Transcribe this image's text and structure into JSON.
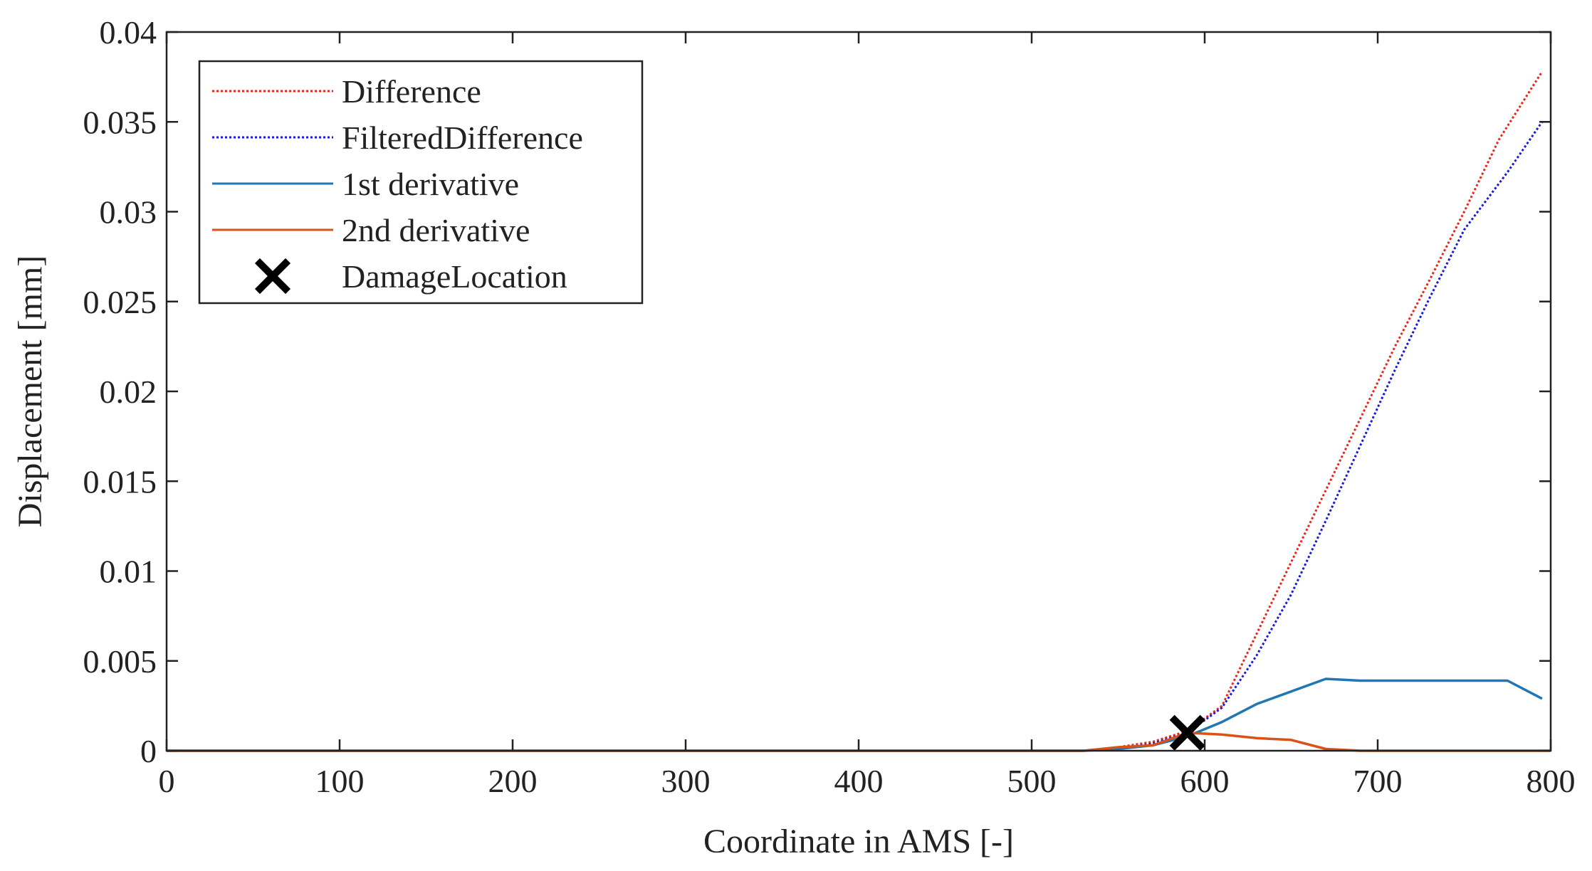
{
  "chart_data": {
    "type": "line",
    "title": "",
    "xlabel": "Coordinate in AMS  [-]",
    "ylabel": "Displacement  [mm]",
    "xlim": [
      0,
      800
    ],
    "ylim": [
      0,
      0.04
    ],
    "xticks": [
      0,
      100,
      200,
      300,
      400,
      500,
      600,
      700,
      800
    ],
    "yticks": [
      0,
      0.005,
      0.01,
      0.015,
      0.02,
      0.025,
      0.03,
      0.035,
      0.04
    ],
    "xtick_labels": [
      "0",
      "100",
      "200",
      "300",
      "400",
      "500",
      "600",
      "700",
      "800"
    ],
    "ytick_labels": [
      "0",
      "0.005",
      "0.01",
      "0.015",
      "0.02",
      "0.025",
      "0.03",
      "0.035",
      "0.04"
    ],
    "grid": false,
    "legend_position": "top-left",
    "series": [
      {
        "name": "Difference",
        "color": "#e8261c",
        "style": "dotted",
        "points": [
          [
            0,
            0
          ],
          [
            100,
            0
          ],
          [
            200,
            0
          ],
          [
            300,
            0
          ],
          [
            400,
            0
          ],
          [
            500,
            0
          ],
          [
            530,
            0
          ],
          [
            550,
            0.0002
          ],
          [
            570,
            0.0005
          ],
          [
            590,
            0.0011
          ],
          [
            610,
            0.0025
          ],
          [
            630,
            0.0065
          ],
          [
            650,
            0.0105
          ],
          [
            670,
            0.0145
          ],
          [
            690,
            0.0185
          ],
          [
            710,
            0.0225
          ],
          [
            730,
            0.0262
          ],
          [
            750,
            0.03
          ],
          [
            770,
            0.034
          ],
          [
            795,
            0.0378
          ]
        ]
      },
      {
        "name": "FilteredDifference",
        "color": "#1a1ad6",
        "style": "dotted",
        "points": [
          [
            0,
            0
          ],
          [
            100,
            0
          ],
          [
            200,
            0
          ],
          [
            300,
            0
          ],
          [
            400,
            0
          ],
          [
            500,
            0
          ],
          [
            530,
            0
          ],
          [
            550,
            0.0001
          ],
          [
            570,
            0.0004
          ],
          [
            590,
            0.001
          ],
          [
            610,
            0.0024
          ],
          [
            630,
            0.0053
          ],
          [
            650,
            0.0087
          ],
          [
            670,
            0.0128
          ],
          [
            690,
            0.017
          ],
          [
            710,
            0.0212
          ],
          [
            730,
            0.0252
          ],
          [
            750,
            0.029
          ],
          [
            775,
            0.0322
          ],
          [
            795,
            0.035
          ]
        ]
      },
      {
        "name": "1st derivative",
        "color": "#1f77b4",
        "style": "solid",
        "points": [
          [
            0,
            0
          ],
          [
            100,
            0
          ],
          [
            200,
            0
          ],
          [
            300,
            0
          ],
          [
            400,
            0
          ],
          [
            500,
            0
          ],
          [
            530,
            0
          ],
          [
            550,
            0.0001
          ],
          [
            570,
            0.0003
          ],
          [
            590,
            0.0008
          ],
          [
            610,
            0.0016
          ],
          [
            630,
            0.0026
          ],
          [
            650,
            0.0033
          ],
          [
            670,
            0.004
          ],
          [
            690,
            0.0039
          ],
          [
            710,
            0.0039
          ],
          [
            730,
            0.0039
          ],
          [
            750,
            0.0039
          ],
          [
            775,
            0.0039
          ],
          [
            795,
            0.0029
          ]
        ]
      },
      {
        "name": "2nd derivative",
        "color": "#d95319",
        "style": "solid",
        "points": [
          [
            0,
            0
          ],
          [
            100,
            0
          ],
          [
            200,
            0
          ],
          [
            300,
            0
          ],
          [
            400,
            0
          ],
          [
            500,
            0
          ],
          [
            530,
            0
          ],
          [
            550,
            0.0002
          ],
          [
            570,
            0.0003
          ],
          [
            590,
            0.001
          ],
          [
            610,
            0.0009
          ],
          [
            630,
            0.0007
          ],
          [
            650,
            0.0006
          ],
          [
            670,
            0.0001
          ],
          [
            690,
            0
          ],
          [
            710,
            0
          ],
          [
            800,
            0
          ]
        ]
      }
    ],
    "markers": [
      {
        "name": "DamageLocation",
        "symbol": "x",
        "color": "#000000",
        "x": 590,
        "y": 0.001
      }
    ]
  }
}
